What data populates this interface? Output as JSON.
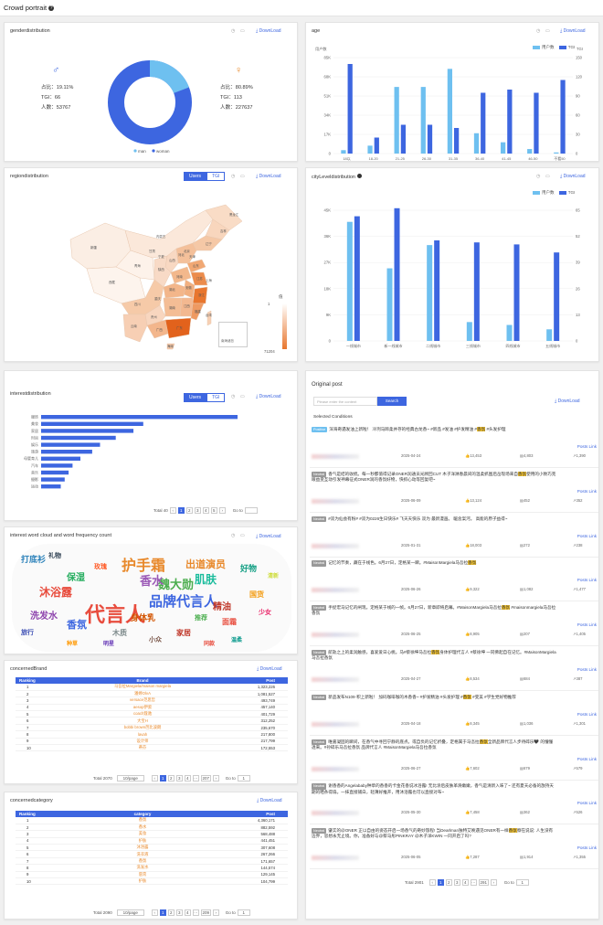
{
  "header": {
    "title": "Crowd portrait"
  },
  "common": {
    "download": "⤓ DownLoad",
    "users": "Users",
    "tgi": "TGI",
    "goto": "Go to"
  },
  "gender": {
    "title": "genderdistribution",
    "male": {
      "ratio": "占比：19.11%",
      "tgi": "TGI：66",
      "count": "人数：53767"
    },
    "female": {
      "ratio": "占比：80.89%",
      "tgi": "TGI：113",
      "count": "人数：227637"
    },
    "legend_man": "man",
    "legend_woman": "woman",
    "man_share": 0.1911,
    "colors": {
      "man": "#6ec0f0",
      "woman": "#3d66e0"
    }
  },
  "age": {
    "title": "age",
    "left_unit": "用户数",
    "right_unit": "TGI",
    "legend_users": "用户数",
    "legend_tgi": "TGI",
    "chart_data": {
      "type": "bar",
      "categories": [
        "18以",
        "18-20",
        "21-25",
        "26-30",
        "31-35",
        "36-40",
        "41-45",
        "46-50",
        "不看50"
      ],
      "yticks": [
        "0",
        "17K",
        "34K",
        "51K",
        "68K",
        "85K"
      ],
      "y2ticks": [
        "0",
        "30",
        "60",
        "90",
        "120",
        "150"
      ],
      "series": [
        {
          "name": "用户数",
          "values": [
            3000,
            7000,
            59000,
            59000,
            75000,
            18000,
            10000,
            4000,
            1000
          ]
        },
        {
          "name": "TGI",
          "values": [
            140,
            25,
            45,
            45,
            40,
            95,
            100,
            95,
            115
          ]
        }
      ],
      "ylim": [
        0,
        85000
      ],
      "y2lim": [
        0,
        150
      ]
    }
  },
  "region": {
    "title": "regiondistribution",
    "scale_max": "1",
    "scale_min": "71204",
    "scale_label": "值",
    "inset": "南海诸岛",
    "labels": [
      "黑龙江",
      "吉林",
      "辽宁",
      "北京",
      "天津",
      "内蒙古",
      "新疆",
      "西藏",
      "青海",
      "甘肃",
      "宁夏",
      "陕西",
      "山西",
      "河北",
      "山东",
      "河南",
      "江苏",
      "安徽",
      "湖北",
      "上海",
      "浙江",
      "四川",
      "重庆",
      "湖南",
      "江西",
      "福建",
      "贵州",
      "云南",
      "广西",
      "广东",
      "台湾",
      "海南"
    ]
  },
  "city": {
    "title": "cityLeveldistribution",
    "legend_users": "用户数",
    "legend_tgi": "TGI",
    "chart_data": {
      "type": "bar",
      "categories": [
        "一线城市",
        "新一线城市",
        "二线城市",
        "三线城市",
        "四线城市",
        "五线城市"
      ],
      "yticks": [
        "0",
        "9K",
        "18K",
        "27K",
        "36K",
        "45K"
      ],
      "y2ticks": [
        "0",
        "13",
        "26",
        "39",
        "52",
        "65"
      ],
      "series": [
        {
          "name": "用户数",
          "values": [
            41000,
            25000,
            33000,
            6500,
            5500,
            4000
          ]
        },
        {
          "name": "TGI",
          "values": [
            62,
            66,
            50,
            49,
            48,
            44
          ]
        }
      ],
      "ylim": [
        0,
        45000
      ],
      "y2lim": [
        0,
        65
      ]
    }
  },
  "interest": {
    "title": "interestdistribution",
    "total": "Total 40",
    "chart_data": {
      "type": "bar",
      "categories": [
        "服饰",
        "美妆",
        "家居",
        "时尚",
        "娱乐",
        "旅游",
        "母婴育儿",
        "汽车",
        "音乐",
        "摄影",
        "运动"
      ],
      "values": [
        100,
        52,
        47,
        38,
        30,
        26,
        20,
        16,
        14,
        12,
        10
      ]
    },
    "pages": [
      "1",
      "2",
      "3",
      "4",
      "5"
    ]
  },
  "wordcloud": {
    "title": "interest word cloud and word frequency count",
    "words": [
      {
        "t": "代言人",
        "c": "#e84c3d"
      },
      {
        "t": "护手霜",
        "c": "#e8892b"
      },
      {
        "t": "品牌代言人",
        "c": "#3d66e0"
      },
      {
        "t": "魏大勋",
        "c": "#4cae4f"
      },
      {
        "t": "香水",
        "c": "#9b59b6"
      },
      {
        "t": "沐浴露",
        "c": "#e84c3d"
      },
      {
        "t": "肌肤",
        "c": "#1abc9c"
      },
      {
        "t": "出道演员",
        "c": "#e8892b"
      },
      {
        "t": "香氛",
        "c": "#3d66e0"
      },
      {
        "t": "精油",
        "c": "#c0392b"
      },
      {
        "t": "保湿",
        "c": "#27ae60"
      },
      {
        "t": "洗发水",
        "c": "#8e44ad"
      },
      {
        "t": "身体乳",
        "c": "#d35400"
      },
      {
        "t": "打底衫",
        "c": "#2980b9"
      },
      {
        "t": "好物",
        "c": "#16a085"
      },
      {
        "t": "面霜",
        "c": "#e84c3d"
      },
      {
        "t": "国货",
        "c": "#f39c12"
      },
      {
        "t": "木质",
        "c": "#7f8c8d"
      },
      {
        "t": "家居",
        "c": "#c0392b"
      },
      {
        "t": "礼物",
        "c": "#2c3e50"
      },
      {
        "t": "少女",
        "c": "#e91e63"
      },
      {
        "t": "玫瑰",
        "c": "#ff5722"
      },
      {
        "t": "推荐",
        "c": "#4caf50"
      },
      {
        "t": "旅行",
        "c": "#3f51b5"
      },
      {
        "t": "小众",
        "c": "#795548"
      },
      {
        "t": "温柔",
        "c": "#009688"
      },
      {
        "t": "清新",
        "c": "#cddc39"
      },
      {
        "t": "种草",
        "c": "#ff9800"
      },
      {
        "t": "明星",
        "c": "#673ab7"
      },
      {
        "t": "同款",
        "c": "#e84c3d"
      }
    ]
  },
  "brand": {
    "title": "concernedBrand",
    "cols": [
      "Ranking",
      "Brand",
      "Post"
    ],
    "rows": [
      [
        "1",
        "马吾拉Margiela/maison margiela",
        "1,323,226"
      ],
      [
        "2",
        "潘婷OlvA",
        "1,081,527"
      ],
      [
        "3",
        "versace范思哲",
        "493,749"
      ],
      [
        "4",
        "aesop伊索",
        "457,140"
      ],
      [
        "5",
        "coach蔻驰",
        "401,729"
      ],
      [
        "6",
        "大宝H",
        "312,252"
      ],
      [
        "7",
        "bobbi brown芭比波朗",
        "235,670"
      ],
      [
        "8",
        "lavah",
        "217,800"
      ],
      [
        "9",
        "设计师",
        "217,799"
      ],
      [
        "10",
        "蒂芬",
        "172,553"
      ]
    ],
    "total": "Total 2070",
    "size": "10/page",
    "pages": [
      "1",
      "2",
      "3",
      "4",
      "···",
      "207"
    ],
    "goto_val": "1"
  },
  "category": {
    "title": "concernedcategory",
    "cols": [
      "Ranking",
      "category",
      "Post"
    ],
    "rows": [
      [
        "1",
        "香氛",
        "4,360,171"
      ],
      [
        "2",
        "香水",
        "882,592"
      ],
      [
        "3",
        "美妆",
        "568,488"
      ],
      [
        "4",
        "护肤",
        "441,451"
      ],
      [
        "5",
        "沐浴露",
        "307,608"
      ],
      [
        "6",
        "洗衣液",
        "267,266"
      ],
      [
        "7",
        "香氛",
        "171,657"
      ],
      [
        "8",
        "洗发水",
        "144,574"
      ],
      [
        "9",
        "唇膏",
        "129,145"
      ],
      [
        "10",
        "护肤",
        "104,799"
      ]
    ],
    "total": "Total 2090",
    "size": "10/page",
    "pages": [
      "1",
      "2",
      "3",
      "4",
      "···",
      "209"
    ],
    "goto_val": "1"
  },
  "posts": {
    "title": "Original post",
    "placeholder": "Please enter the content",
    "search": "Search",
    "conditions": "Selected Conditions",
    "link": "Posts Link",
    "items": [
      {
        "tag": "Positive",
        "pre": "深海奇遇发油上新啦！ 冷冽马蹄柔并存的经典古龙香~ #新品 #发油 #护发精油 #",
        "hl": "香氛",
        "post": " #头发护理",
        "date": "2025-04-24",
        "likes": "13,453",
        "comments": "4,803",
        "shares": "1,390"
      },
      {
        "tag": "Neutral",
        "pre": "香气是结的收梳。每一秒都值得记录ONER润通员光顾回CUT 木子洋淋春晨间的温柔抓图后岳现场来自",
        "hl": "香氛",
        "post": "使用的小致巧克眼益变互动引发神幕征式ONER润的香氛好物，快抓心动等回复吧~",
        "date": "2025-06-09",
        "likes": "13,124",
        "comments": "452",
        "shares": "352"
      },
      {
        "tag": "Neutral",
        "pre": "#双为仙会有粉# #双为0226生日快乐# 飞天天快乐 双为 最新漫画。 暖含案河。 高能的原子益得~",
        "hl": "",
        "post": "",
        "date": "2025-01-31",
        "likes": "18,003",
        "comments": "272",
        "shares": "238"
      },
      {
        "tag": "Neutral",
        "pre": "记忆的节奏，藏在于线色。6月27日，定格某一瞬。#MaisonMargiela马吾拉",
        "hl": "香氛",
        "post": "",
        "date": "2025-06-26",
        "likes": "9,322",
        "comments": "1,082",
        "shares": "1,477"
      },
      {
        "tag": "Neutral",
        "pre": "手捉宏马记忆的闸现。定格某于线的一帧。6月27日，新章即将启幕。#MaisonMargiela马吾拉",
        "hl": "香氛",
        "post": " #maisonmargiela马吾拉香氛",
        "date": "2025-06-25",
        "likes": "8,905",
        "comments": "207",
        "shares": "1,405"
      },
      {
        "tag": "Neutral",
        "pre": "航轨之上的柔润触感，喜爱爱日心桃。马#蔡徐坤马吾拉",
        "hl": "香氛",
        "post": "身体护理代言人 #蔡徐坤 一同佛起自在记忆。#MaisonMargiela马吾拉香氛",
        "date": "2025-04-27",
        "likes": "8,534",
        "comments": "684",
        "shares": "387"
      },
      {
        "tag": "Neutral",
        "pre": "新品发布N109·积上新啦！ 加码咖啡咖的木香香~ #护发精油 #头发护理 #",
        "hl": "香氛",
        "post": " #变美 #学生党好物推荐",
        "date": "2025-04-18",
        "likes": "8,345",
        "comments": "1,036",
        "shares": "1,301"
      },
      {
        "tag": "Neutral",
        "pre": "唯嘉凝固的瞬间，在香气中寻回宁静的底点。或自负的记忆折叠，定格属于马吾拉",
        "hl": "香氛",
        "post": "全新品牌代言人步待碎乐🖤 的懂懂透来。#孙碎乐马吾拉香氛 品牌代言人 #MaisonMargiela马吾拉香氛",
        "date": "2025-06-27",
        "likes": "7,602",
        "comments": "679",
        "shares": "579"
      },
      {
        "tag": "Neutral",
        "pre": "谢香香的Angelababy种草的香香的卡金花香说冰浴露! 无比涂后皮肤革滑嫩嫩，香气是清新入味了~ 还有夏天必备的放持天期的晒条得扇。一抹直接捕白，轻薄好推开，用沐浴露也可以直接对布~",
        "hl": "",
        "post": "",
        "date": "2025-05-30",
        "likes": "7,458",
        "comments": "362",
        "shares": "526"
      },
      {
        "tag": "Neutral",
        "pre": "肇实的@ONER 正以自由的姿态开启一场香气的奇妙旅程! 当Dearlman独特艾唤遇见ONER有一样",
        "hl": "香氛",
        "post": "察在说说: 人生没有边界，思想永无止境。你，准备好与@蔡马彤PINKRAY @木子洋KWIN 一同开启了吗?",
        "date": "2025-06-05",
        "likes": "7,287",
        "comments": "1,914",
        "shares": "1,355"
      }
    ],
    "total": "Total 2901",
    "pages": [
      "1",
      "2",
      "3",
      "4",
      "···",
      "291"
    ],
    "goto_val": "1"
  }
}
